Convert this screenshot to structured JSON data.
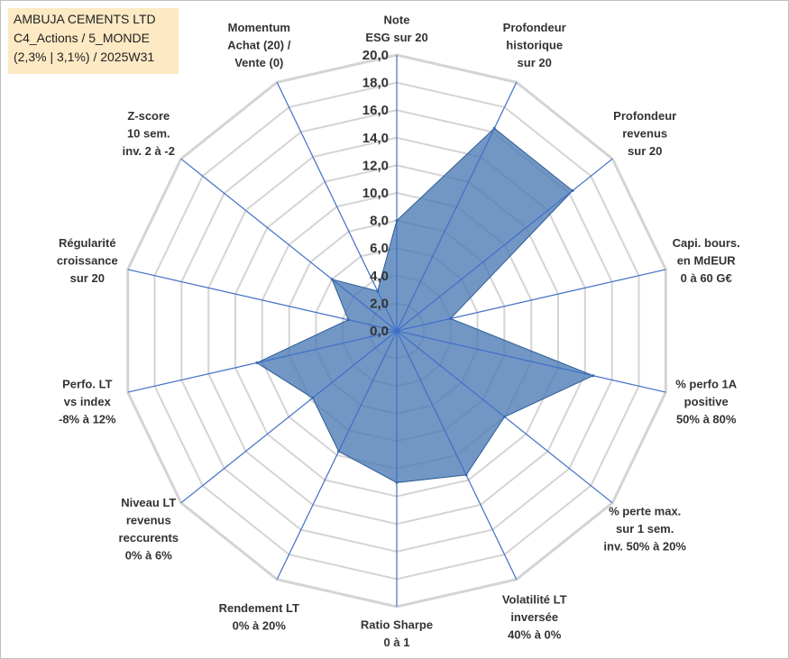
{
  "title": {
    "line1": "AMBUJA CEMENTS LTD",
    "line2": "C4_Actions / 5_MONDE",
    "line3": "(2,3% | 3,1%) / 2025W31"
  },
  "chart_data": {
    "type": "radar",
    "scale": {
      "min": 0,
      "max": 20,
      "step": 2
    },
    "tick_labels": [
      "0,0",
      "2,0",
      "4,0",
      "6,0",
      "8,0",
      "10,0",
      "12,0",
      "14,0",
      "16,0",
      "18,0",
      "20,0"
    ],
    "axes": [
      {
        "label": [
          "Note",
          "ESG sur 20"
        ],
        "value": 8.0
      },
      {
        "label": [
          "Profondeur",
          "historique",
          "sur 20"
        ],
        "value": 16.3
      },
      {
        "label": [
          "Profondeur",
          "revenus",
          "sur 20"
        ],
        "value": 16.3
      },
      {
        "label": [
          "Capi. bours.",
          "en MdEUR",
          "0 à 60 G€"
        ],
        "value": 4.0
      },
      {
        "label": [
          "% perfo 1A",
          "positive",
          "50% à 80%"
        ],
        "value": 14.6
      },
      {
        "label": [
          "% perte max.",
          "sur 1 sem.",
          "inv. 50% à 20%"
        ],
        "value": 10.0
      },
      {
        "label": [
          "Volatilité LT",
          "inversée",
          "40% à 0%"
        ],
        "value": 11.6
      },
      {
        "label": [
          "Ratio Sharpe",
          "0 à 1"
        ],
        "value": 11.0
      },
      {
        "label": [
          "Rendement LT",
          "0% à 20%"
        ],
        "value": 9.7
      },
      {
        "label": [
          "Niveau LT",
          "revenus",
          "reccurents",
          "0% à 6%"
        ],
        "value": 7.8
      },
      {
        "label": [
          "Perfo. LT",
          "vs index",
          "-8% à 12%"
        ],
        "value": 10.4
      },
      {
        "label": [
          "Régularité",
          "croissance",
          "sur 20"
        ],
        "value": 3.6
      },
      {
        "label": [
          "Z-score",
          "10 sem.",
          "inv. 2 à -2"
        ],
        "value": 6.0
      },
      {
        "label": [
          "Momentum",
          "Achat (20) /",
          "Vente (0)"
        ],
        "value": 3.2
      }
    ],
    "colors": {
      "fill": "#4a7ab5",
      "stroke": "#2e5c96",
      "grid": "#d4d4d4",
      "spoke": "#3f6fc6"
    }
  }
}
